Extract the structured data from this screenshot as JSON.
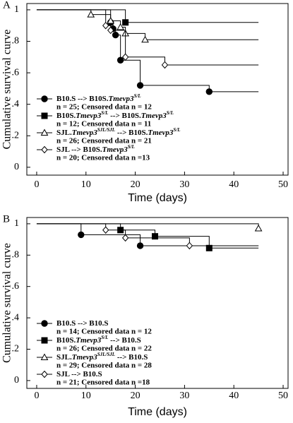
{
  "chart_data": [
    {
      "type": "step",
      "panel": "A",
      "ylabel": "Cumulative survival curve",
      "xlabel": "Time (days)",
      "xlim": [
        -2,
        51
      ],
      "ylim": [
        -0.05,
        1.04
      ],
      "xticks": [
        0,
        10,
        20,
        30,
        40,
        50
      ],
      "yticks": [
        0,
        {
          "value": 0.2,
          "label": ".2"
        },
        {
          "value": 0.4,
          "label": ".4"
        },
        {
          "value": 0.6,
          "label": ".6"
        },
        {
          "value": 0.8,
          "label": ".8"
        },
        1
      ],
      "series": [
        {
          "name": [
            {
              "text": "B10.S --> B10S.",
              "style": "plain"
            },
            {
              "text": "Tmevp3",
              "style": "italic"
            },
            {
              "text": "S/L",
              "style": "sup"
            }
          ],
          "note": "n = 25; Censored data n = 12",
          "marker": "circle",
          "filled": true,
          "color": "#000000",
          "x": [
            0,
            15,
            15.5,
            16,
            17,
            21,
            35,
            45
          ],
          "values": [
            1,
            0.92,
            0.88,
            0.84,
            0.68,
            0.52,
            0.48,
            0.48
          ]
        },
        {
          "name": [
            {
              "text": "B10S.",
              "style": "plain"
            },
            {
              "text": "Tmevp3",
              "style": "italic"
            },
            {
              "text": "S/L",
              "style": "sup"
            },
            {
              "text": " --> B10S.",
              "style": "plain"
            },
            {
              "text": "Tmevp3",
              "style": "italic"
            },
            {
              "text": "S/L",
              "style": "sup"
            }
          ],
          "note": "n = 12; Censored data n = 11",
          "marker": "square",
          "filled": true,
          "color": "#000000",
          "x": [
            0,
            18,
            45
          ],
          "values": [
            1,
            0.92,
            0.92
          ]
        },
        {
          "name": [
            {
              "text": "SJL.",
              "style": "plain"
            },
            {
              "text": "Tmevp3",
              "style": "italic"
            },
            {
              "text": "SJL/SJL",
              "style": "sup"
            },
            {
              "text": " --> B10S.",
              "style": "plain"
            },
            {
              "text": "Tmevp3",
              "style": "italic"
            },
            {
              "text": "S/L",
              "style": "sup"
            }
          ],
          "note": "n = 26; Censored data n = 21",
          "marker": "triangle",
          "filled": false,
          "color": "#000000",
          "x": [
            0,
            11,
            15,
            17,
            18,
            22,
            45
          ],
          "values": [
            1,
            0.97,
            0.93,
            0.89,
            0.85,
            0.81,
            0.81
          ]
        },
        {
          "name": [
            {
              "text": "SJL  --> B10S.",
              "style": "plain"
            },
            {
              "text": "Tmevp3",
              "style": "italic"
            },
            {
              "text": "S/L",
              "style": "sup"
            }
          ],
          "note": "n = 20; Censored data n =13",
          "marker": "diamond",
          "filled": false,
          "color": "#000000",
          "x": [
            0,
            14,
            15,
            18,
            26,
            45
          ],
          "values": [
            1,
            0.9,
            0.87,
            0.7,
            0.65,
            0.65
          ]
        }
      ]
    },
    {
      "type": "step",
      "panel": "B",
      "ylabel": "Cumulative survival curve",
      "xlabel": "Time (days)",
      "xlim": [
        -2,
        51
      ],
      "ylim": [
        -0.05,
        1.04
      ],
      "xticks": [
        0,
        10,
        20,
        30,
        40,
        50
      ],
      "yticks": [
        0,
        {
          "value": 0.2,
          "label": ".2"
        },
        {
          "value": 0.4,
          "label": ".4"
        },
        {
          "value": 0.6,
          "label": ".6"
        },
        {
          "value": 0.8,
          "label": ".8"
        },
        1
      ],
      "series": [
        {
          "name": [
            {
              "text": "B10.S --> B10.S",
              "style": "plain"
            }
          ],
          "note": "n = 14; Censored data n = 12",
          "marker": "circle",
          "filled": true,
          "color": "#000000",
          "x": [
            0,
            9,
            21,
            45
          ],
          "values": [
            1,
            0.93,
            0.86,
            0.86
          ]
        },
        {
          "name": [
            {
              "text": "B10S.",
              "style": "plain"
            },
            {
              "text": "Tmevp3",
              "style": "italic"
            },
            {
              "text": "S/L",
              "style": "sup"
            },
            {
              "text": " --> B10.S",
              "style": "plain"
            }
          ],
          "note": "n = 26; Censored data n = 22",
          "marker": "square",
          "filled": true,
          "color": "#000000",
          "x": [
            0,
            17,
            24,
            35,
            45
          ],
          "values": [
            1,
            0.96,
            0.92,
            0.845,
            0.845
          ]
        },
        {
          "name": [
            {
              "text": "SJL.",
              "style": "plain"
            },
            {
              "text": "Tmevp3",
              "style": "italic"
            },
            {
              "text": "SJL/SJL",
              "style": "sup"
            },
            {
              "text": " --> B10.S",
              "style": "plain"
            }
          ],
          "note": "n = 29; Censored data n = 28",
          "marker": "triangle",
          "filled": false,
          "color": "#000000",
          "x": [
            0,
            45
          ],
          "values": [
            1,
            0.97
          ]
        },
        {
          "name": [
            {
              "text": "SJL  --> B10.S",
              "style": "plain"
            }
          ],
          "note": "n = 21; Censored data n =18",
          "marker": "diamond",
          "filled": false,
          "color": "#000000",
          "x": [
            0,
            14,
            18,
            31,
            45
          ],
          "values": [
            1,
            0.96,
            0.91,
            0.86,
            0.86
          ]
        }
      ]
    }
  ]
}
